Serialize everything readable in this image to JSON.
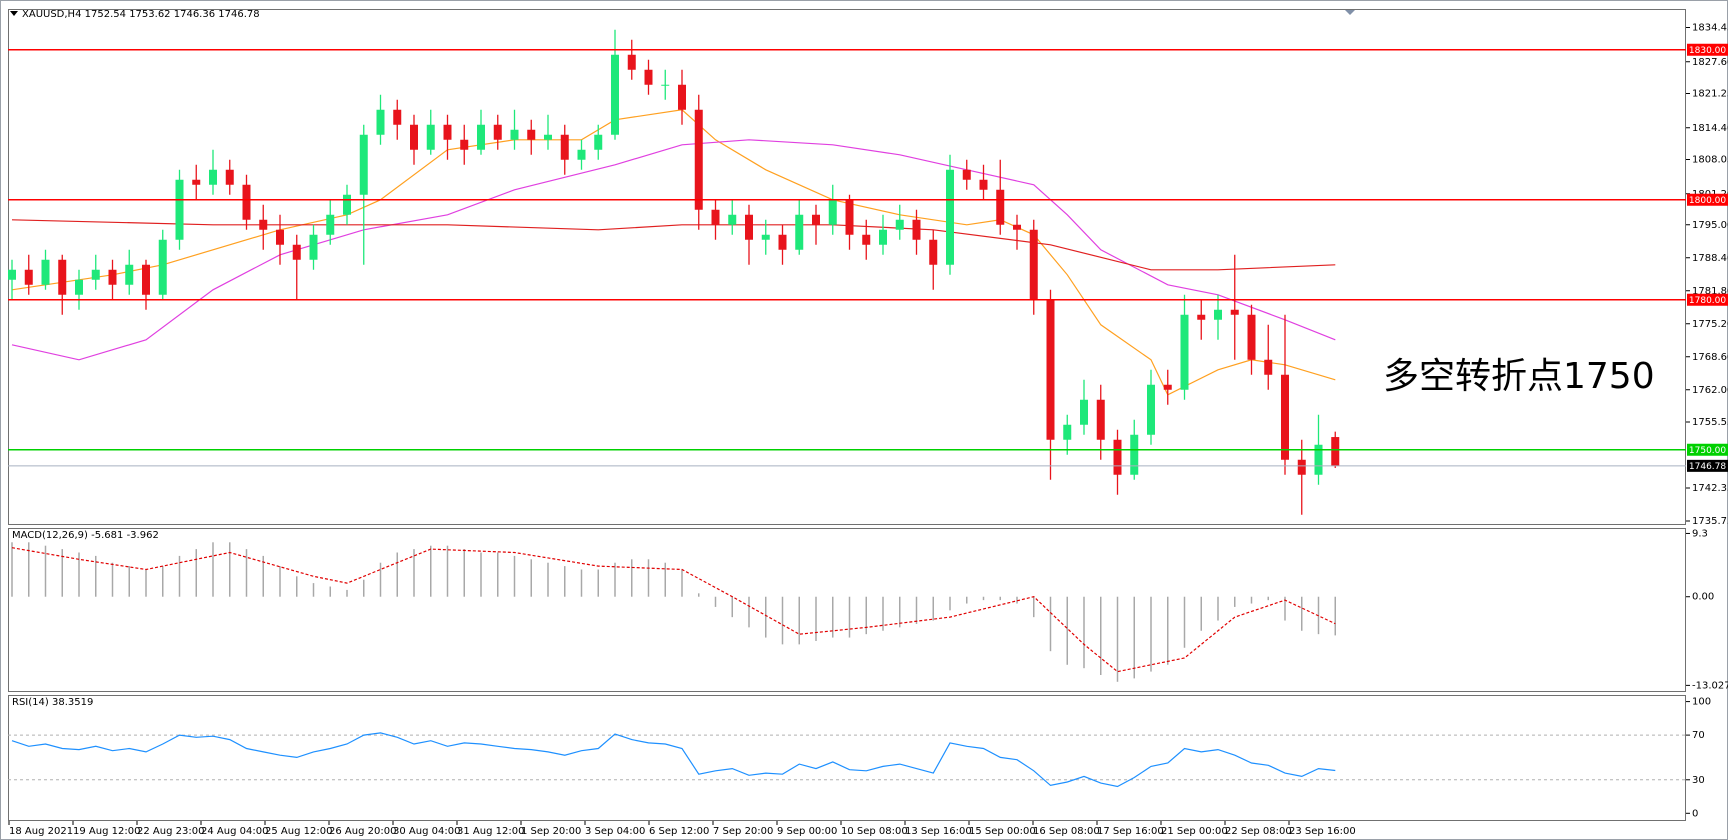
{
  "chart_data": {
    "type": "candlestick",
    "symbol": "XAUUSD,H4",
    "ohlc": [
      1752.54,
      1753.62,
      1746.36,
      1746.78
    ],
    "annotation": "多空转折点1750",
    "up_color": "#1ee87a",
    "down_color": "#e8141c",
    "candles": [
      [
        1784,
        1788,
        1780,
        1786
      ],
      [
        1786,
        1789,
        1781,
        1783
      ],
      [
        1783,
        1790,
        1782,
        1788
      ],
      [
        1788,
        1789,
        1777,
        1781
      ],
      [
        1781,
        1786,
        1778,
        1784
      ],
      [
        1784,
        1789,
        1782,
        1786
      ],
      [
        1786,
        1788,
        1780,
        1783
      ],
      [
        1783,
        1790,
        1781,
        1787
      ],
      [
        1787,
        1788,
        1778,
        1781
      ],
      [
        1781,
        1794,
        1780,
        1792
      ],
      [
        1792,
        1806,
        1790,
        1804
      ],
      [
        1804,
        1807,
        1800,
        1803
      ],
      [
        1803,
        1810,
        1801,
        1806
      ],
      [
        1806,
        1808,
        1801,
        1803
      ],
      [
        1803,
        1805,
        1794,
        1796
      ],
      [
        1796,
        1799,
        1790,
        1794
      ],
      [
        1794,
        1797,
        1787,
        1791
      ],
      [
        1791,
        1793,
        1780,
        1788
      ],
      [
        1788,
        1795,
        1786,
        1793
      ],
      [
        1793,
        1800,
        1791,
        1797
      ],
      [
        1797,
        1803,
        1795,
        1801
      ],
      [
        1801,
        1815,
        1787,
        1813
      ],
      [
        1813,
        1821,
        1811,
        1818
      ],
      [
        1818,
        1820,
        1812,
        1815
      ],
      [
        1815,
        1817,
        1807,
        1810
      ],
      [
        1810,
        1818,
        1809,
        1815
      ],
      [
        1815,
        1817,
        1808,
        1812
      ],
      [
        1812,
        1815,
        1807,
        1810
      ],
      [
        1810,
        1818,
        1809,
        1815
      ],
      [
        1815,
        1817,
        1810,
        1812
      ],
      [
        1812,
        1818,
        1810,
        1814
      ],
      [
        1814,
        1816,
        1809,
        1812
      ],
      [
        1812,
        1817,
        1810,
        1813
      ],
      [
        1813,
        1815,
        1805,
        1808
      ],
      [
        1808,
        1812,
        1806,
        1810
      ],
      [
        1810,
        1815,
        1808,
        1813
      ],
      [
        1813,
        1834,
        1812,
        1829
      ],
      [
        1829,
        1832,
        1824,
        1826
      ],
      [
        1826,
        1828,
        1821,
        1823
      ],
      [
        1823,
        1826,
        1820,
        1823
      ],
      [
        1823,
        1826,
        1815,
        1818
      ],
      [
        1818,
        1821,
        1794,
        1798
      ],
      [
        1798,
        1800,
        1792,
        1795
      ],
      [
        1795,
        1800,
        1793,
        1797
      ],
      [
        1797,
        1799,
        1787,
        1792
      ],
      [
        1792,
        1796,
        1789,
        1793
      ],
      [
        1793,
        1795,
        1787,
        1790
      ],
      [
        1790,
        1800,
        1789,
        1797
      ],
      [
        1797,
        1799,
        1791,
        1795
      ],
      [
        1795,
        1803,
        1793,
        1800
      ],
      [
        1800,
        1801,
        1790,
        1793
      ],
      [
        1793,
        1796,
        1788,
        1791
      ],
      [
        1791,
        1797,
        1789,
        1794
      ],
      [
        1794,
        1799,
        1792,
        1796
      ],
      [
        1796,
        1798,
        1789,
        1792
      ],
      [
        1792,
        1794,
        1782,
        1787
      ],
      [
        1787,
        1809,
        1785,
        1806
      ],
      [
        1806,
        1808,
        1802,
        1804
      ],
      [
        1804,
        1807,
        1800,
        1802
      ],
      [
        1802,
        1808,
        1793,
        1795
      ],
      [
        1795,
        1797,
        1790,
        1794
      ],
      [
        1794,
        1796,
        1777,
        1780
      ],
      [
        1780,
        1782,
        1744,
        1752
      ],
      [
        1752,
        1757,
        1749,
        1755
      ],
      [
        1755,
        1764,
        1753,
        1760
      ],
      [
        1760,
        1763,
        1748,
        1752
      ],
      [
        1752,
        1754,
        1741,
        1745
      ],
      [
        1745,
        1756,
        1744,
        1753
      ],
      [
        1753,
        1766,
        1751,
        1763
      ],
      [
        1763,
        1766,
        1759,
        1762
      ],
      [
        1762,
        1781,
        1760,
        1777
      ],
      [
        1777,
        1780,
        1772,
        1776
      ],
      [
        1776,
        1781,
        1772,
        1778
      ],
      [
        1778,
        1789,
        1768,
        1777
      ],
      [
        1777,
        1779,
        1765,
        1768
      ],
      [
        1768,
        1775,
        1762,
        1765
      ],
      [
        1765,
        1777,
        1745,
        1748
      ],
      [
        1748,
        1752,
        1737,
        1745
      ],
      [
        1745,
        1757,
        1743,
        1751
      ],
      [
        1752.54,
        1753.62,
        1746.36,
        1746.78
      ]
    ],
    "ylim": [
      1734.95,
      1838.15
    ],
    "yticks": [
      1834.45,
      {
        "value": 1827.6,
        "label": "1827.60"
      },
      1821.25,
      {
        "value": 1814.4,
        "label": "1814.40"
      },
      1808.05,
      {
        "value": 1801.2,
        "label": "1801.20"
      },
      {
        "value": 1795,
        "label": "1795.00"
      },
      {
        "value": 1788.4,
        "label": "1788.40"
      },
      {
        "value": 1781.8,
        "label": "1781.80"
      },
      {
        "value": 1775.2,
        "label": "1775.20"
      },
      {
        "value": 1768.6,
        "label": "1768.60"
      },
      {
        "value": 1762,
        "label": "1762.00"
      },
      1755.55,
      1742.35,
      1735.75
    ],
    "moving_averages": [
      {
        "color": "#ffa020",
        "x": [
          0,
          6,
          9,
          16,
          20,
          22,
          26,
          30,
          34,
          36,
          40,
          42,
          45,
          49,
          53,
          57,
          59,
          61,
          63,
          65,
          68,
          69,
          72,
          74,
          76,
          79
        ],
        "values": [
          1782,
          1785,
          1787,
          1794,
          1797,
          1800,
          1810,
          1812,
          1812,
          1816,
          1818,
          1812,
          1806,
          1800,
          1797,
          1795,
          1796,
          1793,
          1785,
          1775,
          1768,
          1761,
          1766,
          1768,
          1767,
          1764
        ]
      },
      {
        "color": "#e040e0",
        "x": [
          0,
          4,
          8,
          12,
          16,
          21,
          26,
          30,
          36,
          40,
          44,
          49,
          53,
          57,
          61,
          63,
          65,
          69,
          72,
          76,
          79
        ],
        "values": [
          1771,
          1768,
          1772,
          1782,
          1789,
          1794,
          1797,
          1802,
          1807,
          1811,
          1812,
          1811,
          1809,
          1806,
          1803,
          1797,
          1790,
          1783,
          1781,
          1776,
          1772
        ]
      },
      {
        "color": "#e02020",
        "x": [
          0,
          12,
          26,
          35,
          40,
          49,
          55,
          62,
          68,
          72,
          79
        ],
        "values": [
          1796,
          1795,
          1795,
          1794,
          1795,
          1795,
          1794,
          1791,
          1786,
          1786,
          1787
        ]
      }
    ],
    "levels": [
      {
        "value": 1830,
        "label": "1830.00",
        "color": "#ff0000",
        "box_color": "#ff0000"
      },
      {
        "value": 1800,
        "label": "1800.00",
        "color": "#ff0000",
        "box_color": "#ff0000"
      },
      {
        "value": 1780,
        "label": "1780.00",
        "color": "#ff0000",
        "box_color": "#ff0000"
      },
      {
        "value": 1750,
        "label": "1750.00",
        "color": "#00d000",
        "box_color": "#00d000"
      },
      {
        "value": 1746.78,
        "label": "1746.78",
        "color": "#a8b0c0",
        "box_color": "#000000"
      }
    ],
    "x_labels": [
      "18 Aug 2021",
      "19 Aug 12:00",
      "22 Aug 23:00",
      "24 Aug 04:00",
      "25 Aug 12:00",
      "26 Aug 20:00",
      "30 Aug 04:00",
      "31 Aug 12:00",
      "1 Sep 20:00",
      "3 Sep 04:00",
      "6 Sep 12:00",
      "7 Sep 20:00",
      "9 Sep 00:00",
      "10 Sep 08:00",
      "13 Sep 16:00",
      "15 Sep 00:00",
      "16 Sep 08:00",
      "17 Sep 16:00",
      "21 Sep 00:00",
      "22 Sep 08:00",
      "23 Sep 16:00"
    ],
    "macd": {
      "label": "MACD(12,26,9)",
      "hist_color": "#a8a8a8",
      "histogram": [
        8,
        8,
        7.5,
        7,
        6.5,
        6,
        5,
        4.5,
        4,
        4.5,
        6,
        7,
        8,
        8,
        7,
        6,
        4.5,
        3,
        2,
        1.5,
        1,
        2.5,
        5,
        6.5,
        7,
        7.5,
        7.5,
        7,
        6.5,
        6.5,
        6,
        5.5,
        5,
        4.5,
        4,
        4,
        5,
        5.5,
        5.5,
        5,
        4,
        0.5,
        -1.5,
        -3,
        -4.5,
        -6,
        -7,
        -7,
        -6.5,
        -6,
        -6,
        -5.5,
        -5,
        -4.5,
        -4,
        -3.5,
        -2,
        -1,
        -0.5,
        -0.5,
        -1,
        -3,
        -8,
        -10,
        -10.5,
        -11.5,
        -12.5,
        -12,
        -11,
        -10,
        -7.5,
        -5,
        -3.5,
        -1.5,
        -1,
        -0.5,
        -3.5,
        -5,
        -5.5,
        -5.681
      ],
      "signal": {
        "color": "#e00000",
        "x": [
          0,
          4,
          8,
          13,
          18,
          20,
          25,
          30,
          35,
          40,
          43,
          47,
          51,
          56,
          61,
          64,
          66,
          70,
          73,
          76,
          79
        ],
        "values": [
          7.2,
          5.5,
          4,
          6.5,
          3,
          2,
          7,
          6.5,
          4.5,
          4,
          0,
          -5.5,
          -4.5,
          -3,
          0,
          -7,
          -11,
          -9,
          -3,
          -0.5,
          -3.962
        ]
      },
      "ylim": [
        -14,
        10.1
      ],
      "yticks": [
        9.3,
        {
          "value": 0,
          "label": "0.00"
        },
        -13.027
      ]
    },
    "rsi": {
      "label": "RSI(14)",
      "color": "#1e90ff",
      "values": [
        65,
        60,
        62,
        58,
        57,
        60,
        56,
        58,
        55,
        62,
        70,
        68,
        69,
        66,
        58,
        55,
        52,
        50,
        55,
        58,
        62,
        70,
        72,
        68,
        62,
        65,
        60,
        63,
        62,
        60,
        58,
        57,
        55,
        52,
        56,
        58,
        71,
        66,
        63,
        62,
        58,
        35,
        38,
        40,
        34,
        36,
        35,
        44,
        40,
        46,
        39,
        38,
        42,
        44,
        40,
        36,
        63,
        60,
        58,
        50,
        48,
        38,
        25,
        28,
        33,
        27,
        24,
        32,
        42,
        45,
        58,
        55,
        57,
        52,
        45,
        43,
        36,
        33,
        40,
        38.3519
      ],
      "ylim": [
        -6.9,
        105.9
      ],
      "yticks": [
        100,
        70,
        30,
        0
      ],
      "levels": [
        70,
        30
      ]
    }
  }
}
